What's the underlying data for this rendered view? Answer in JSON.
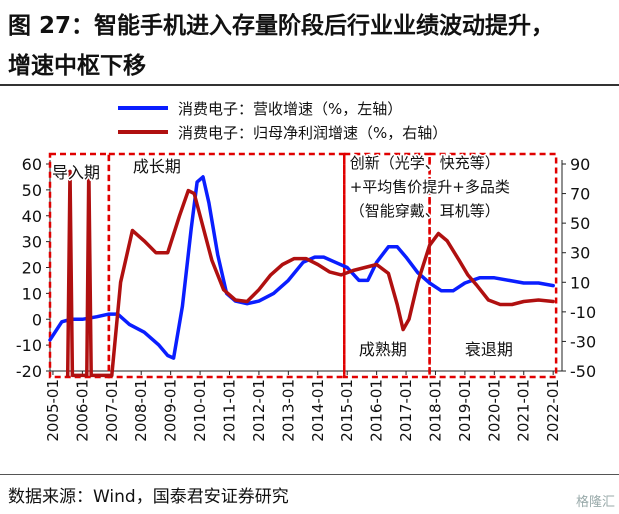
{
  "title": {
    "line1": "图 27：智能手机进入存量阶段后行业业绩波动提升，",
    "line2": "增速中枢下移"
  },
  "source": "数据来源：Wind，国泰君安证券研究",
  "watermark": "格隆汇",
  "colors": {
    "revenue": "#0a1eff",
    "profit": "#b01010",
    "phase_border": "#e00000"
  },
  "chart_data": {
    "type": "line",
    "x": [
      "2005-01",
      "2006-01",
      "2007-01",
      "2008-01",
      "2009-01",
      "2010-01",
      "2011-01",
      "2012-01",
      "2013-01",
      "2014-01",
      "2015-01",
      "2016-01",
      "2017-01",
      "2018-01",
      "2019-01",
      "2020-01",
      "2021-01",
      "2022-01"
    ],
    "xlim": [
      2004.9,
      2022.3
    ],
    "y_left": {
      "ticks": [
        "60",
        "50",
        "40",
        "30",
        "20",
        "10",
        "0",
        "-10",
        "-20"
      ],
      "range": [
        -20,
        60
      ]
    },
    "y_right": {
      "ticks": [
        "90",
        "70",
        "50",
        "30",
        "10",
        "-10",
        "-30",
        "-50"
      ],
      "range": [
        -50,
        90
      ]
    },
    "series": [
      {
        "name": "消费电子：营收增速（%，左轴）",
        "axis": "left",
        "color": "#0a1eff",
        "points": [
          [
            2004.9,
            -8
          ],
          [
            2005.3,
            -1
          ],
          [
            2005.6,
            0
          ],
          [
            2006.0,
            0
          ],
          [
            2006.5,
            1
          ],
          [
            2006.9,
            2
          ],
          [
            2007.2,
            2
          ],
          [
            2007.6,
            -2
          ],
          [
            2008.1,
            -5
          ],
          [
            2008.6,
            -10
          ],
          [
            2008.9,
            -14
          ],
          [
            2009.1,
            -15
          ],
          [
            2009.4,
            5
          ],
          [
            2009.7,
            35
          ],
          [
            2009.9,
            53
          ],
          [
            2010.1,
            55
          ],
          [
            2010.3,
            45
          ],
          [
            2010.6,
            25
          ],
          [
            2010.9,
            10
          ],
          [
            2011.2,
            7
          ],
          [
            2011.6,
            6
          ],
          [
            2012.0,
            7
          ],
          [
            2012.5,
            10
          ],
          [
            2013.0,
            15
          ],
          [
            2013.5,
            22
          ],
          [
            2013.9,
            24
          ],
          [
            2014.2,
            24
          ],
          [
            2014.6,
            22
          ],
          [
            2015.0,
            20
          ],
          [
            2015.4,
            15
          ],
          [
            2015.7,
            15
          ],
          [
            2016.0,
            22
          ],
          [
            2016.4,
            28
          ],
          [
            2016.7,
            28
          ],
          [
            2017.0,
            24
          ],
          [
            2017.4,
            18
          ],
          [
            2017.8,
            14
          ],
          [
            2018.2,
            11
          ],
          [
            2018.6,
            11
          ],
          [
            2019.0,
            14
          ],
          [
            2019.5,
            16
          ],
          [
            2020.0,
            16
          ],
          [
            2020.5,
            15
          ],
          [
            2021.0,
            14
          ],
          [
            2021.5,
            14
          ],
          [
            2022.0,
            13
          ]
        ]
      },
      {
        "name": "消费电子：归母净利润增速（%，右轴）",
        "axis": "right",
        "color": "#b01010",
        "points": [
          [
            2005.5,
            -53
          ],
          [
            2005.58,
            85
          ],
          [
            2005.66,
            -53
          ],
          [
            2006.15,
            -53
          ],
          [
            2006.22,
            88
          ],
          [
            2006.3,
            -53
          ],
          [
            2007.0,
            -53
          ],
          [
            2007.3,
            10
          ],
          [
            2007.7,
            45
          ],
          [
            2008.1,
            38
          ],
          [
            2008.5,
            30
          ],
          [
            2008.9,
            30
          ],
          [
            2009.3,
            55
          ],
          [
            2009.6,
            72
          ],
          [
            2009.8,
            70
          ],
          [
            2010.0,
            55
          ],
          [
            2010.4,
            25
          ],
          [
            2010.8,
            5
          ],
          [
            2011.2,
            -2
          ],
          [
            2011.6,
            -3
          ],
          [
            2012.0,
            5
          ],
          [
            2012.4,
            15
          ],
          [
            2012.8,
            22
          ],
          [
            2013.2,
            26
          ],
          [
            2013.6,
            26
          ],
          [
            2014.0,
            22
          ],
          [
            2014.4,
            17
          ],
          [
            2014.8,
            15
          ],
          [
            2015.2,
            18
          ],
          [
            2015.6,
            20
          ],
          [
            2016.0,
            22
          ],
          [
            2016.4,
            16
          ],
          [
            2016.7,
            -5
          ],
          [
            2016.9,
            -22
          ],
          [
            2017.1,
            -15
          ],
          [
            2017.4,
            10
          ],
          [
            2017.8,
            35
          ],
          [
            2018.1,
            43
          ],
          [
            2018.4,
            38
          ],
          [
            2018.8,
            25
          ],
          [
            2019.1,
            15
          ],
          [
            2019.4,
            8
          ],
          [
            2019.8,
            -2
          ],
          [
            2020.2,
            -5
          ],
          [
            2020.6,
            -5
          ],
          [
            2021.0,
            -3
          ],
          [
            2021.5,
            -2
          ],
          [
            2022.0,
            -3
          ]
        ]
      }
    ],
    "legend": {
      "position": "top-left",
      "entries": [
        "消费电子：营收增速（%，左轴）",
        "消费电子：归母净利润增速（%，右轴）"
      ]
    },
    "phases": [
      {
        "label": "导入期",
        "from": 2004.9,
        "to": 2006.9,
        "label_pos": "top"
      },
      {
        "label": "成长期",
        "from": 2006.9,
        "to": 2014.9,
        "label_pos": "top"
      },
      {
        "label": "成熟期",
        "from": 2014.9,
        "to": 2017.8,
        "label_pos": "bottom"
      },
      {
        "label": "衰退期",
        "from": 2017.8,
        "to": 2022.1,
        "label_pos": "bottom"
      }
    ],
    "annotation_lines": [
      "创新（光学、快充等）",
      "+平均售价提升+多品类",
      "（智能穿戴、耳机等）"
    ],
    "grid": false
  }
}
